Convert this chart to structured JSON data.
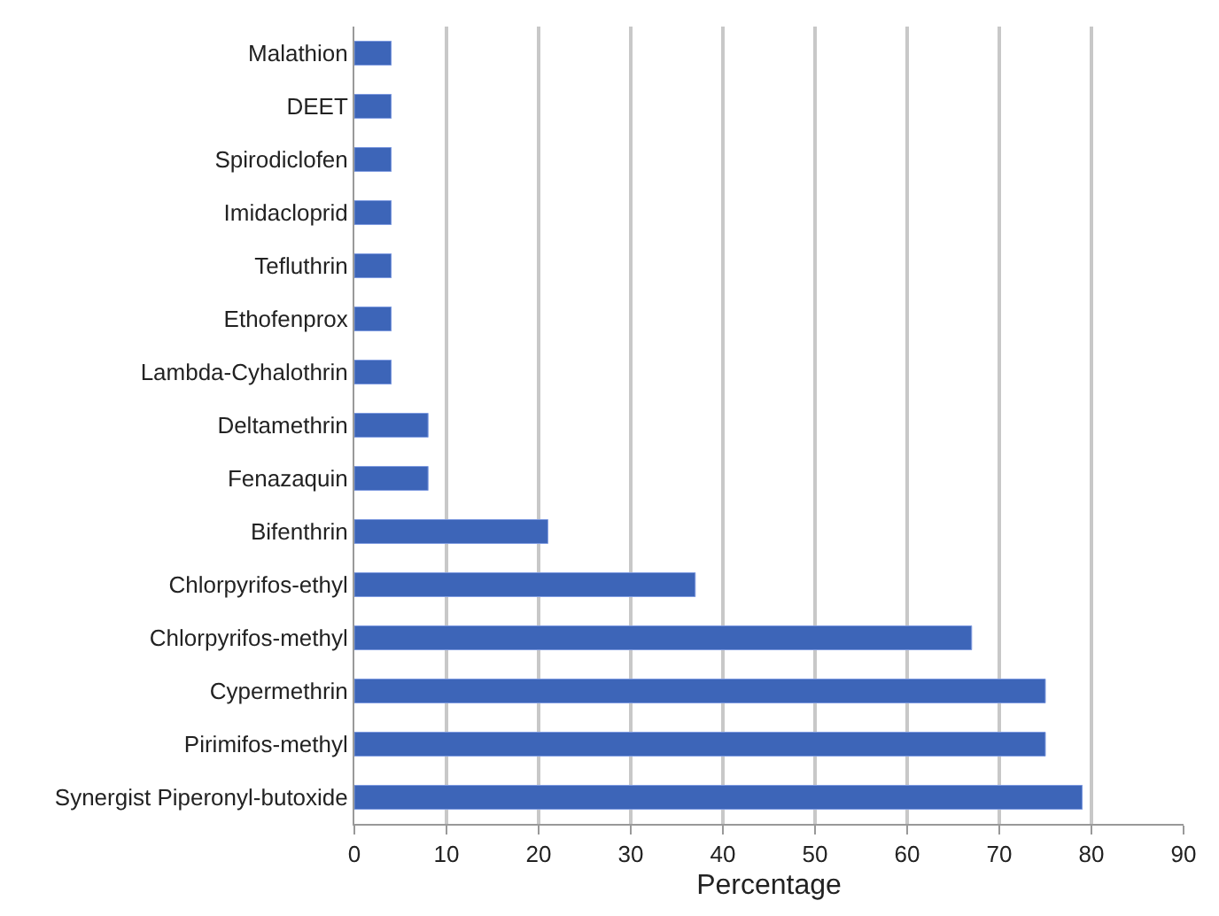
{
  "chart_data": {
    "type": "bar",
    "orientation": "horizontal",
    "xlabel": "Percentage",
    "categories": [
      "Malathion",
      "DEET",
      "Spirodiclofen",
      "Imidacloprid",
      "Tefluthrin",
      "Ethofenprox",
      "Lambda-Cyhalothrin",
      "Deltamethrin",
      "Fenazaquin",
      "Bifenthrin",
      "Chlorpyrifos-ethyl",
      "Chlorpyrifos-methyl",
      "Cypermethrin",
      "Pirimifos-methyl",
      "Synergist Piperonyl-butoxide"
    ],
    "values": [
      4,
      4,
      4,
      4,
      4,
      4,
      4,
      8,
      8,
      21,
      37,
      67,
      75,
      75,
      79
    ],
    "color": "#3d65b8",
    "xlim": [
      0,
      90
    ],
    "xticks": [
      0,
      10,
      20,
      30,
      40,
      50,
      60,
      70,
      80,
      90
    ],
    "grid": "x"
  }
}
